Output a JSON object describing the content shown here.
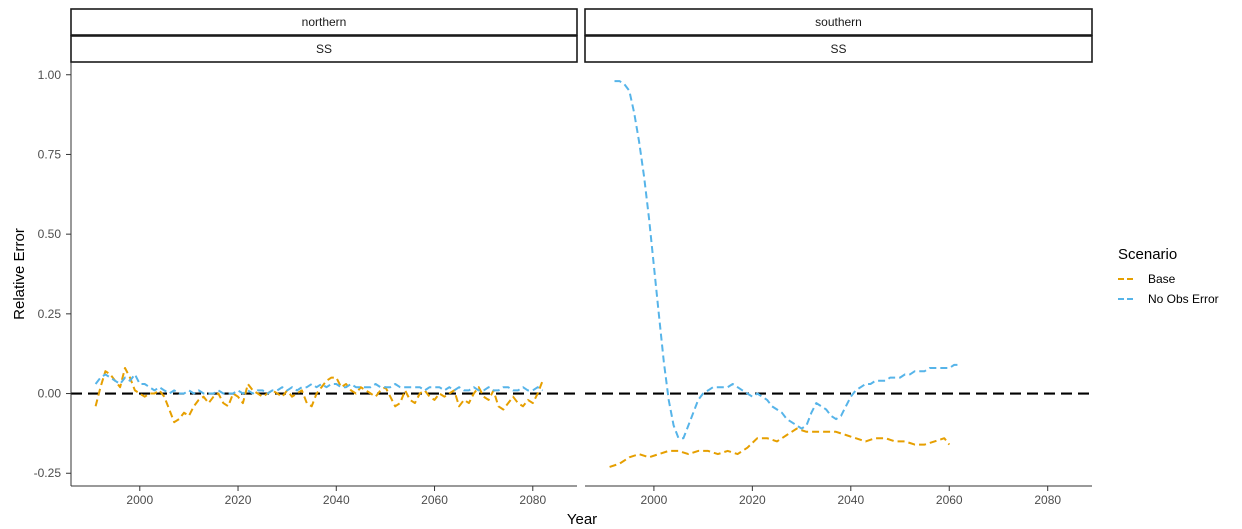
{
  "chart_data": {
    "type": "line",
    "xlabel": "Year",
    "ylabel": "Relative Error",
    "xlim": [
      1986,
      2089
    ],
    "ylim": [
      -0.29,
      1.04
    ],
    "xticks": [
      2000,
      2020,
      2040,
      2060,
      2080
    ],
    "yticks": [
      -0.25,
      0,
      0.25,
      0.5,
      0.75,
      1.0
    ],
    "ytick_labels": [
      "-0.25",
      "0.00",
      "0.25",
      "0.50",
      "0.75",
      "1.00"
    ],
    "reference_line": {
      "y": 0,
      "style": "dashed",
      "color": "#000000"
    },
    "legend": {
      "title": "Scenario",
      "placement": "right",
      "entries": [
        {
          "label": "Base",
          "color": "#E69F00"
        },
        {
          "label": "No Obs Error",
          "color": "#56B4E9"
        }
      ]
    },
    "panels": [
      {
        "strip_top": "northern",
        "strip_bottom": "SS",
        "series": [
          {
            "name": "Base",
            "color": "#E69F00",
            "x": [
              1991,
              1992,
              1993,
              1994,
              1995,
              1996,
              1997,
              1998,
              1999,
              2000,
              2001,
              2002,
              2003,
              2004,
              2005,
              2006,
              2007,
              2008,
              2009,
              2010,
              2011,
              2012,
              2013,
              2014,
              2015,
              2016,
              2017,
              2018,
              2019,
              2020,
              2021,
              2022,
              2023,
              2024,
              2025,
              2026,
              2027,
              2028,
              2029,
              2030,
              2031,
              2032,
              2033,
              2034,
              2035,
              2036,
              2037,
              2038,
              2039,
              2040,
              2041,
              2042,
              2043,
              2044,
              2045,
              2046,
              2047,
              2048,
              2049,
              2050,
              2051,
              2052,
              2053,
              2054,
              2055,
              2056,
              2057,
              2058,
              2059,
              2060,
              2061,
              2062,
              2063,
              2064,
              2065,
              2066,
              2067,
              2068,
              2069,
              2070,
              2071,
              2072,
              2073,
              2074,
              2075,
              2076,
              2077,
              2078,
              2079,
              2080,
              2081,
              2082
            ],
            "y": [
              -0.04,
              0.02,
              0.07,
              0.06,
              0.04,
              0.02,
              0.08,
              0.05,
              0.01,
              0.0,
              -0.01,
              0.0,
              0.0,
              0.01,
              -0.01,
              -0.05,
              -0.09,
              -0.08,
              -0.06,
              -0.07,
              -0.04,
              -0.02,
              -0.01,
              -0.03,
              -0.01,
              0.0,
              -0.03,
              -0.04,
              0.0,
              -0.01,
              -0.03,
              0.03,
              0.01,
              0.0,
              -0.01,
              0.0,
              0.01,
              0.0,
              -0.01,
              0.01,
              -0.01,
              0.0,
              0.01,
              -0.03,
              -0.04,
              0.0,
              0.02,
              0.04,
              0.05,
              0.05,
              0.02,
              0.03,
              0.01,
              0.0,
              0.02,
              0.01,
              0.0,
              -0.01,
              0.01,
              0.02,
              -0.01,
              -0.04,
              -0.03,
              0.01,
              -0.02,
              -0.03,
              0.0,
              0.01,
              -0.01,
              -0.02,
              0.0,
              -0.01,
              0.0,
              0.01,
              -0.04,
              -0.02,
              -0.03,
              0.0,
              0.02,
              -0.01,
              -0.02,
              0.01,
              -0.04,
              -0.05,
              -0.03,
              -0.01,
              -0.03,
              -0.04,
              -0.02,
              -0.03,
              0.0,
              0.04
            ]
          },
          {
            "name": "No Obs Error",
            "color": "#56B4E9",
            "x": [
              1991,
              1992,
              1993,
              1994,
              1995,
              1996,
              1997,
              1998,
              1999,
              2000,
              2001,
              2002,
              2003,
              2004,
              2005,
              2006,
              2007,
              2008,
              2009,
              2010,
              2011,
              2012,
              2013,
              2014,
              2015,
              2016,
              2017,
              2018,
              2019,
              2020,
              2021,
              2022,
              2023,
              2024,
              2025,
              2026,
              2027,
              2028,
              2029,
              2030,
              2031,
              2032,
              2033,
              2034,
              2035,
              2036,
              2037,
              2038,
              2039,
              2040,
              2041,
              2042,
              2043,
              2044,
              2045,
              2046,
              2047,
              2048,
              2049,
              2050,
              2051,
              2052,
              2053,
              2054,
              2055,
              2056,
              2057,
              2058,
              2059,
              2060,
              2061,
              2062,
              2063,
              2064,
              2065,
              2066,
              2067,
              2068,
              2069,
              2070,
              2071,
              2072,
              2073,
              2074,
              2075,
              2076,
              2077,
              2078,
              2079,
              2080,
              2081,
              2082
            ],
            "y": [
              0.03,
              0.05,
              0.06,
              0.05,
              0.04,
              0.03,
              0.05,
              0.04,
              0.06,
              0.03,
              0.03,
              0.02,
              0.01,
              0.02,
              0.01,
              0.0,
              0.01,
              0.0,
              0.0,
              0.01,
              0.0,
              0.01,
              0.0,
              0.0,
              0.0,
              0.01,
              0.0,
              0.0,
              0.0,
              0.01,
              0.0,
              0.01,
              0.0,
              0.01,
              0.01,
              0.0,
              0.01,
              0.01,
              0.02,
              0.01,
              0.02,
              0.01,
              0.02,
              0.02,
              0.03,
              0.02,
              0.03,
              0.02,
              0.03,
              0.03,
              0.02,
              0.02,
              0.03,
              0.02,
              0.02,
              0.02,
              0.02,
              0.03,
              0.02,
              0.02,
              0.02,
              0.03,
              0.02,
              0.02,
              0.02,
              0.02,
              0.02,
              0.01,
              0.02,
              0.02,
              0.02,
              0.01,
              0.02,
              0.01,
              0.02,
              0.01,
              0.01,
              0.02,
              0.01,
              0.01,
              0.02,
              0.01,
              0.01,
              0.02,
              0.02,
              0.01,
              0.01,
              0.02,
              0.01,
              0.01,
              0.02,
              0.01
            ]
          }
        ]
      },
      {
        "strip_top": "southern",
        "strip_bottom": "SS",
        "series": [
          {
            "name": "Base",
            "color": "#E69F00",
            "x": [
              1991,
              1993,
              1995,
              1997,
              1999,
              2001,
              2003,
              2005,
              2007,
              2009,
              2011,
              2013,
              2015,
              2017,
              2019,
              2021,
              2023,
              2025,
              2027,
              2029,
              2031,
              2033,
              2035,
              2037,
              2039,
              2041,
              2043,
              2045,
              2047,
              2049,
              2051,
              2053,
              2055,
              2057,
              2059,
              2060
            ],
            "y": [
              -0.23,
              -0.22,
              -0.2,
              -0.19,
              -0.2,
              -0.19,
              -0.18,
              -0.18,
              -0.19,
              -0.18,
              -0.18,
              -0.19,
              -0.18,
              -0.19,
              -0.17,
              -0.14,
              -0.14,
              -0.15,
              -0.13,
              -0.11,
              -0.12,
              -0.12,
              -0.12,
              -0.12,
              -0.13,
              -0.14,
              -0.15,
              -0.14,
              -0.14,
              -0.15,
              -0.15,
              -0.16,
              -0.16,
              -0.15,
              -0.14,
              -0.16
            ]
          },
          {
            "name": "No Obs Error",
            "color": "#56B4E9",
            "x": [
              1992,
              1993,
              1994,
              1995,
              1996,
              1997,
              1998,
              1999,
              2000,
              2001,
              2002,
              2003,
              2004,
              2005,
              2006,
              2007,
              2008,
              2009,
              2010,
              2011,
              2012,
              2013,
              2014,
              2015,
              2016,
              2017,
              2018,
              2019,
              2020,
              2021,
              2022,
              2023,
              2024,
              2025,
              2026,
              2027,
              2028,
              2029,
              2030,
              2031,
              2032,
              2033,
              2034,
              2035,
              2036,
              2037,
              2038,
              2039,
              2040,
              2041,
              2042,
              2043,
              2044,
              2045,
              2046,
              2047,
              2048,
              2049,
              2050,
              2051,
              2052,
              2053,
              2054,
              2055,
              2056,
              2057,
              2058,
              2059,
              2060,
              2061,
              2062
            ],
            "y": [
              0.98,
              0.98,
              0.97,
              0.95,
              0.88,
              0.79,
              0.68,
              0.55,
              0.4,
              0.25,
              0.1,
              -0.02,
              -0.1,
              -0.14,
              -0.14,
              -0.1,
              -0.06,
              -0.02,
              0.0,
              0.01,
              0.02,
              0.02,
              0.02,
              0.02,
              0.03,
              0.02,
              0.01,
              0.0,
              -0.01,
              0.0,
              -0.01,
              -0.02,
              -0.04,
              -0.05,
              -0.06,
              -0.08,
              -0.09,
              -0.1,
              -0.11,
              -0.1,
              -0.06,
              -0.03,
              -0.04,
              -0.05,
              -0.07,
              -0.08,
              -0.07,
              -0.04,
              -0.01,
              0.01,
              0.02,
              0.03,
              0.03,
              0.04,
              0.04,
              0.04,
              0.05,
              0.05,
              0.05,
              0.06,
              0.06,
              0.07,
              0.07,
              0.07,
              0.08,
              0.08,
              0.08,
              0.08,
              0.08,
              0.09,
              0.09
            ]
          }
        ]
      }
    ]
  }
}
